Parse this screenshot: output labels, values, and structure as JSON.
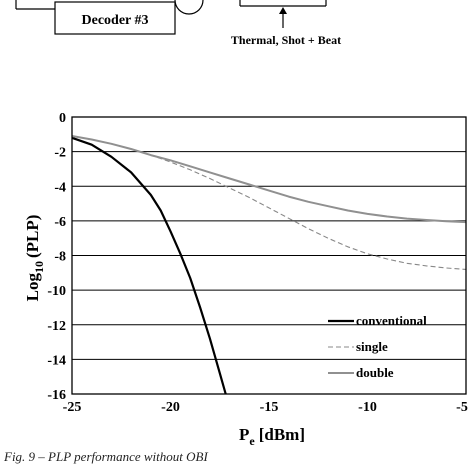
{
  "diagram": {
    "decoder_label": "Decoder #3",
    "noise_label": "Thermal, Shot + Beat"
  },
  "caption": "Fig. 9 – PLP performance without OBI",
  "chart_data": {
    "type": "line",
    "xlabel": "P",
    "xlabel_sub": "e",
    "xlabel_unit": "[dBm]",
    "ylabel": "Log",
    "ylabel_sub": "10",
    "ylabel_suffix": "(PLP)",
    "xlim": [
      -25,
      -5
    ],
    "ylim": [
      -16,
      0
    ],
    "xticks": [
      -25,
      -20,
      -15,
      -10,
      -5
    ],
    "yticks": [
      0,
      -2,
      -4,
      -6,
      -8,
      -10,
      -12,
      -14,
      -16
    ],
    "grid": "horizontal",
    "legend_position": "bottom-right",
    "series": [
      {
        "name": "conventional",
        "style": "solid",
        "color": "#000000",
        "x": [
          -25,
          -24,
          -23,
          -22,
          -21,
          -20.5,
          -20,
          -19.5,
          -19,
          -18.5,
          -18,
          -17.5,
          -17.2
        ],
        "y": [
          -1.2,
          -1.6,
          -2.3,
          -3.2,
          -4.5,
          -5.4,
          -6.6,
          -7.9,
          -9.3,
          -11.0,
          -12.8,
          -14.8,
          -16
        ]
      },
      {
        "name": "single",
        "style": "dashed",
        "color": "#888888",
        "x": [
          -25,
          -24,
          -23,
          -22,
          -21,
          -20,
          -19,
          -18,
          -17,
          -16,
          -15,
          -14,
          -13,
          -12,
          -11,
          -10,
          -9,
          -8,
          -7,
          -6,
          -5
        ],
        "y": [
          -1.1,
          -1.3,
          -1.55,
          -1.85,
          -2.2,
          -2.6,
          -3.05,
          -3.55,
          -4.1,
          -4.65,
          -5.25,
          -5.85,
          -6.45,
          -7.0,
          -7.5,
          -7.9,
          -8.2,
          -8.45,
          -8.6,
          -8.72,
          -8.8
        ]
      },
      {
        "name": "double",
        "style": "solid",
        "color": "#909090",
        "x": [
          -25,
          -24,
          -23,
          -22,
          -21,
          -20,
          -19,
          -18,
          -17,
          -16,
          -15,
          -14,
          -13,
          -12,
          -11,
          -10,
          -9,
          -8,
          -7,
          -6,
          -5
        ],
        "y": [
          -1.1,
          -1.3,
          -1.55,
          -1.85,
          -2.2,
          -2.5,
          -2.85,
          -3.2,
          -3.55,
          -3.9,
          -4.25,
          -4.6,
          -4.9,
          -5.15,
          -5.4,
          -5.6,
          -5.75,
          -5.87,
          -5.95,
          -6.02,
          -6.07
        ]
      }
    ]
  }
}
